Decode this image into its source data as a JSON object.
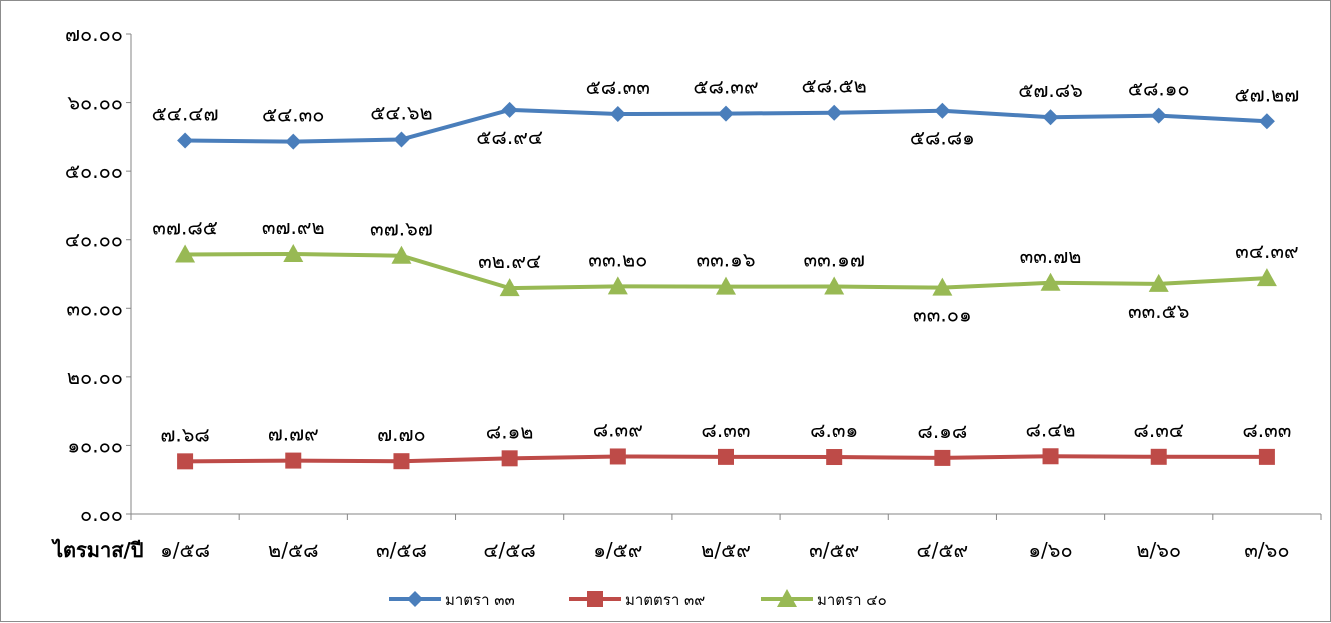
{
  "chart_data": {
    "type": "line",
    "xlabel": "ไตรมาส/ปี",
    "ylabel": "",
    "ylim": [
      0,
      70
    ],
    "yticks": [
      0,
      10,
      20,
      30,
      40,
      50,
      60,
      70
    ],
    "ytick_labels": [
      "๐.๐๐",
      "๑๐.๐๐",
      "๒๐.๐๐",
      "๓๐.๐๐",
      "๔๐.๐๐",
      "๕๐.๐๐",
      "๖๐.๐๐",
      "๗๐.๐๐"
    ],
    "grid": false,
    "legend_position": "bottom",
    "categories": [
      "๑/๕๘",
      "๒/๕๘",
      "๓/๕๘",
      "๔/๕๘",
      "๑/๕๙",
      "๒/๕๙",
      "๓/๕๙",
      "๔/๕๙",
      "๑/๖๐",
      "๒/๖๐",
      "๓/๖๐"
    ],
    "series": [
      {
        "name": "มาตรา ๓๓",
        "color": "#4a7ebb",
        "marker": "diamond",
        "values": [
          54.47,
          54.3,
          54.62,
          58.94,
          58.33,
          58.39,
          58.52,
          58.81,
          57.86,
          58.1,
          57.27
        ],
        "labels": [
          "๕๔.๔๗",
          "๕๔.๓๐",
          "๕๔.๖๒",
          "๕๘.๙๔",
          "๕๘.๓๓",
          "๕๘.๓๙",
          "๕๘.๕๒",
          "๕๘.๘๑",
          "๕๗.๘๖",
          "๕๘.๑๐",
          "๕๗.๒๗"
        ],
        "label_side": [
          "above",
          "above",
          "above",
          "below",
          "above",
          "above",
          "above",
          "below",
          "above",
          "above",
          "above"
        ]
      },
      {
        "name": "มาตตรา ๓๙",
        "color": "#be4b48",
        "marker": "square",
        "values": [
          7.68,
          7.79,
          7.7,
          8.12,
          8.39,
          8.33,
          8.31,
          8.18,
          8.42,
          8.34,
          8.33
        ],
        "labels": [
          "๗.๖๘",
          "๗.๗๙",
          "๗.๗๐",
          "๘.๑๒",
          "๘.๓๙",
          "๘.๓๓",
          "๘.๓๑",
          "๘.๑๘",
          "๘.๔๒",
          "๘.๓๔",
          "๘.๓๓"
        ],
        "label_side": [
          "above",
          "above",
          "above",
          "above",
          "above",
          "above",
          "above",
          "above",
          "above",
          "above",
          "above"
        ]
      },
      {
        "name": "มาตรา ๔๐",
        "color": "#98b954",
        "marker": "triangle",
        "values": [
          37.85,
          37.92,
          37.67,
          32.94,
          33.2,
          33.16,
          33.17,
          33.01,
          33.72,
          33.56,
          34.39
        ],
        "labels": [
          "๓๗.๘๕",
          "๓๗.๙๒",
          "๓๗.๖๗",
          "๓๒.๙๔",
          "๓๓.๒๐",
          "๓๓.๑๖",
          "๓๓.๑๗",
          "๓๓.๐๑",
          "๓๓.๗๒",
          "๓๓.๕๖",
          "๓๔.๓๙"
        ],
        "label_side": [
          "above",
          "above",
          "above",
          "above",
          "above",
          "above",
          "above",
          "below",
          "above",
          "below",
          "above"
        ]
      }
    ]
  }
}
